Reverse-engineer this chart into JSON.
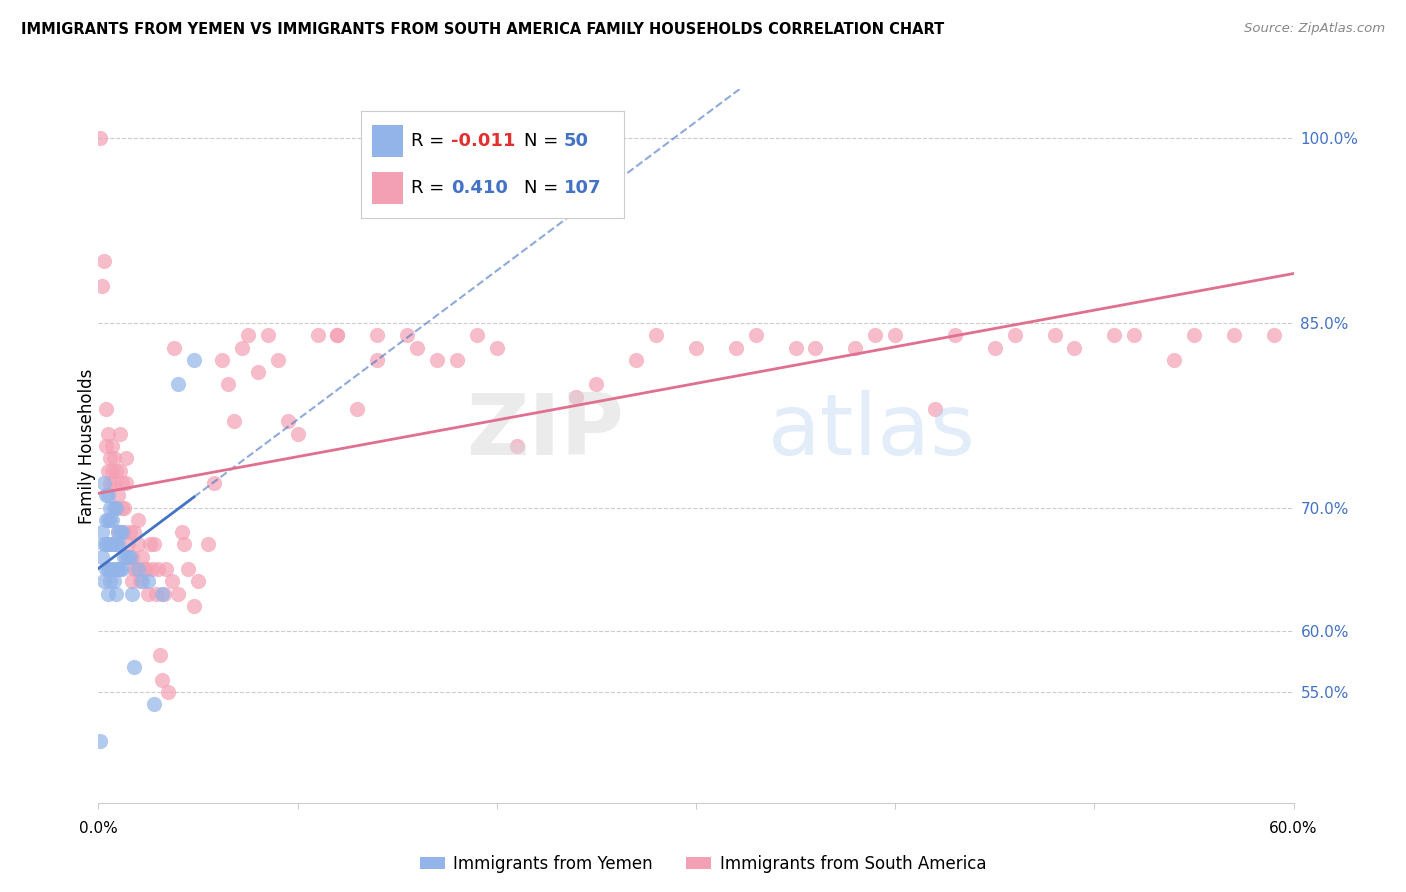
{
  "title": "IMMIGRANTS FROM YEMEN VS IMMIGRANTS FROM SOUTH AMERICA FAMILY HOUSEHOLDS CORRELATION CHART",
  "source": "Source: ZipAtlas.com",
  "ylabel": "Family Households",
  "legend_label1": "Immigrants from Yemen",
  "legend_label2": "Immigrants from South America",
  "R1": -0.011,
  "N1": 50,
  "R2": 0.41,
  "N2": 107,
  "color_yemen": "#92b4e8",
  "color_south_america": "#f4a0b4",
  "color_yemen_line": "#4472c4",
  "color_south_america_line": "#e07090",
  "background_color": "#ffffff",
  "grid_color": "#cccccc",
  "xlim": [
    0.0,
    0.6
  ],
  "ylim": [
    0.46,
    1.04
  ],
  "y_ticks": [
    0.55,
    0.6,
    0.7,
    0.85,
    1.0
  ],
  "y_tick_labels": [
    "55.0%",
    "60.0%",
    "70.0%",
    "85.0%",
    "100.0%"
  ],
  "yemen_x": [
    0.001,
    0.002,
    0.002,
    0.003,
    0.003,
    0.003,
    0.004,
    0.004,
    0.004,
    0.004,
    0.005,
    0.005,
    0.005,
    0.005,
    0.005,
    0.006,
    0.006,
    0.006,
    0.006,
    0.006,
    0.007,
    0.007,
    0.007,
    0.008,
    0.008,
    0.008,
    0.009,
    0.009,
    0.009,
    0.009,
    0.01,
    0.01,
    0.01,
    0.011,
    0.011,
    0.012,
    0.012,
    0.013,
    0.014,
    0.015,
    0.016,
    0.017,
    0.018,
    0.02,
    0.022,
    0.025,
    0.028,
    0.032,
    0.04,
    0.048
  ],
  "yemen_y": [
    0.51,
    0.66,
    0.68,
    0.64,
    0.67,
    0.72,
    0.65,
    0.67,
    0.69,
    0.71,
    0.63,
    0.65,
    0.67,
    0.69,
    0.71,
    0.64,
    0.65,
    0.67,
    0.69,
    0.7,
    0.65,
    0.67,
    0.69,
    0.64,
    0.67,
    0.7,
    0.63,
    0.65,
    0.67,
    0.7,
    0.65,
    0.67,
    0.68,
    0.65,
    0.68,
    0.65,
    0.68,
    0.66,
    0.66,
    0.66,
    0.66,
    0.63,
    0.57,
    0.65,
    0.64,
    0.64,
    0.54,
    0.63,
    0.8,
    0.82
  ],
  "sa_x": [
    0.001,
    0.002,
    0.003,
    0.004,
    0.004,
    0.005,
    0.005,
    0.006,
    0.006,
    0.007,
    0.007,
    0.008,
    0.008,
    0.009,
    0.009,
    0.01,
    0.01,
    0.011,
    0.011,
    0.012,
    0.012,
    0.013,
    0.013,
    0.014,
    0.014,
    0.015,
    0.016,
    0.016,
    0.017,
    0.017,
    0.018,
    0.018,
    0.019,
    0.02,
    0.02,
    0.021,
    0.022,
    0.023,
    0.024,
    0.025,
    0.026,
    0.027,
    0.028,
    0.029,
    0.03,
    0.031,
    0.032,
    0.033,
    0.034,
    0.035,
    0.037,
    0.038,
    0.04,
    0.042,
    0.043,
    0.045,
    0.048,
    0.05,
    0.055,
    0.058,
    0.062,
    0.065,
    0.068,
    0.072,
    0.075,
    0.08,
    0.085,
    0.09,
    0.095,
    0.1,
    0.11,
    0.12,
    0.13,
    0.14,
    0.155,
    0.17,
    0.19,
    0.21,
    0.24,
    0.27,
    0.3,
    0.33,
    0.36,
    0.39,
    0.42,
    0.45,
    0.48,
    0.51,
    0.54,
    0.57,
    0.59,
    0.2,
    0.25,
    0.18,
    0.16,
    0.14,
    0.12,
    0.43,
    0.38,
    0.32,
    0.28,
    0.35,
    0.4,
    0.46,
    0.49,
    0.52,
    0.55
  ],
  "sa_y": [
    1.0,
    0.88,
    0.9,
    0.75,
    0.78,
    0.73,
    0.76,
    0.72,
    0.74,
    0.73,
    0.75,
    0.72,
    0.74,
    0.7,
    0.73,
    0.68,
    0.71,
    0.73,
    0.76,
    0.7,
    0.72,
    0.68,
    0.7,
    0.72,
    0.74,
    0.67,
    0.66,
    0.68,
    0.64,
    0.66,
    0.65,
    0.68,
    0.65,
    0.67,
    0.69,
    0.64,
    0.66,
    0.65,
    0.65,
    0.63,
    0.67,
    0.65,
    0.67,
    0.63,
    0.65,
    0.58,
    0.56,
    0.63,
    0.65,
    0.55,
    0.64,
    0.83,
    0.63,
    0.68,
    0.67,
    0.65,
    0.62,
    0.64,
    0.67,
    0.72,
    0.82,
    0.8,
    0.77,
    0.83,
    0.84,
    0.81,
    0.84,
    0.82,
    0.77,
    0.76,
    0.84,
    0.84,
    0.78,
    0.84,
    0.84,
    0.82,
    0.84,
    0.75,
    0.79,
    0.82,
    0.83,
    0.84,
    0.83,
    0.84,
    0.78,
    0.83,
    0.84,
    0.84,
    0.82,
    0.84,
    0.84,
    0.83,
    0.8,
    0.82,
    0.83,
    0.82,
    0.84,
    0.84,
    0.83,
    0.83,
    0.84,
    0.83,
    0.84,
    0.84,
    0.83,
    0.84,
    0.84
  ]
}
